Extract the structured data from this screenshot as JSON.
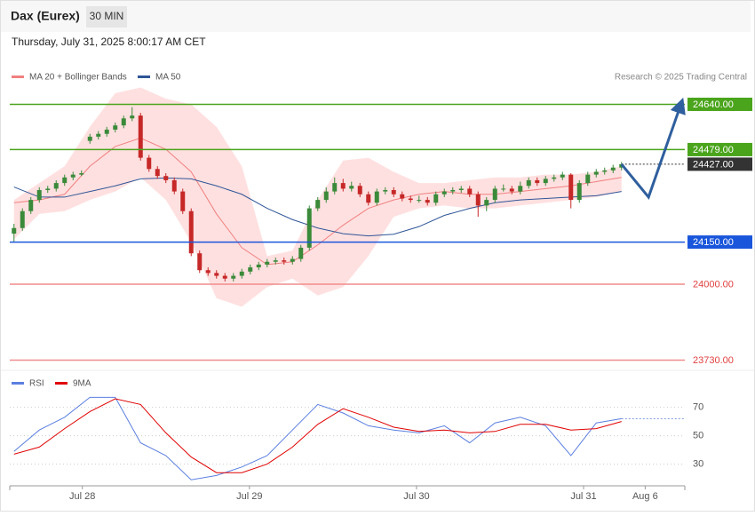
{
  "chart_data": {
    "type": "candlestick",
    "title": "Dax (Eurex)",
    "timeframe": "30 MIN",
    "subtitle": "Thursday, July 31, 2025 8:00:17 AM CET",
    "source": "Research © 2025 Trading Central",
    "up_color": "#3a8a3a",
    "down_color": "#c62828",
    "xlim": [
      -0.5,
      79.5
    ],
    "xticks": [
      {
        "value": 8.1,
        "label": "Jul 28"
      },
      {
        "value": 27.9,
        "label": "Jul 29"
      },
      {
        "value": 47.7,
        "label": "Jul 30"
      },
      {
        "value": 67.5,
        "label": "Jul 31"
      },
      {
        "value": 74.8,
        "label": "Aug 6"
      }
    ],
    "ylim": [
      23700,
      24790
    ],
    "candles": [
      [
        24180,
        24215,
        24150,
        24200
      ],
      [
        24200,
        24270,
        24190,
        24260
      ],
      [
        24260,
        24310,
        24250,
        24300
      ],
      [
        24300,
        24345,
        24290,
        24335
      ],
      [
        24335,
        24350,
        24325,
        24340
      ],
      [
        24340,
        24370,
        24330,
        24360
      ],
      [
        24360,
        24390,
        24350,
        24380
      ],
      [
        24380,
        24400,
        24370,
        24390
      ],
      [
        24390,
        24405,
        24385,
        24395
      ],
      [
        24510,
        24535,
        24500,
        24525
      ],
      [
        24525,
        24545,
        24515,
        24535
      ],
      [
        24535,
        24560,
        24525,
        24550
      ],
      [
        24550,
        24575,
        24540,
        24565
      ],
      [
        24565,
        24600,
        24555,
        24590
      ],
      [
        24590,
        24630,
        24580,
        24600
      ],
      [
        24600,
        24610,
        24440,
        24450
      ],
      [
        24450,
        24460,
        24400,
        24410
      ],
      [
        24410,
        24420,
        24375,
        24385
      ],
      [
        24385,
        24395,
        24360,
        24370
      ],
      [
        24370,
        24380,
        24320,
        24330
      ],
      [
        24330,
        24340,
        24250,
        24260
      ],
      [
        24260,
        24270,
        24100,
        24110
      ],
      [
        24110,
        24120,
        24040,
        24050
      ],
      [
        24050,
        24060,
        24030,
        24040
      ],
      [
        24040,
        24050,
        24020,
        24030
      ],
      [
        24030,
        24040,
        24010,
        24020
      ],
      [
        24020,
        24040,
        24010,
        24030
      ],
      [
        24030,
        24055,
        24020,
        24045
      ],
      [
        24045,
        24070,
        24035,
        24060
      ],
      [
        24060,
        24080,
        24050,
        24070
      ],
      [
        24070,
        24090,
        24060,
        24080
      ],
      [
        24080,
        24095,
        24070,
        24085
      ],
      [
        24085,
        24095,
        24070,
        24080
      ],
      [
        24080,
        24100,
        24070,
        24090
      ],
      [
        24090,
        24140,
        24080,
        24130
      ],
      [
        24130,
        24280,
        24120,
        24270
      ],
      [
        24270,
        24310,
        24260,
        24300
      ],
      [
        24300,
        24345,
        24290,
        24330
      ],
      [
        24330,
        24380,
        24320,
        24360
      ],
      [
        24360,
        24375,
        24330,
        24340
      ],
      [
        24340,
        24365,
        24330,
        24350
      ],
      [
        24350,
        24360,
        24310,
        24320
      ],
      [
        24320,
        24330,
        24280,
        24290
      ],
      [
        24290,
        24340,
        24280,
        24330
      ],
      [
        24330,
        24345,
        24320,
        24335
      ],
      [
        24335,
        24345,
        24310,
        24320
      ],
      [
        24320,
        24330,
        24295,
        24305
      ],
      [
        24305,
        24315,
        24290,
        24300
      ],
      [
        24300,
        24315,
        24290,
        24300
      ],
      [
        24300,
        24310,
        24280,
        24290
      ],
      [
        24290,
        24330,
        24280,
        24320
      ],
      [
        24320,
        24340,
        24310,
        24330
      ],
      [
        24330,
        24345,
        24320,
        24335
      ],
      [
        24335,
        24350,
        24325,
        24340
      ],
      [
        24340,
        24350,
        24310,
        24320
      ],
      [
        24320,
        24330,
        24240,
        24280
      ],
      [
        24280,
        24310,
        24260,
        24300
      ],
      [
        24300,
        24350,
        24290,
        24340
      ],
      [
        24340,
        24355,
        24330,
        24340
      ],
      [
        24340,
        24350,
        24320,
        24330
      ],
      [
        24330,
        24365,
        24320,
        24350
      ],
      [
        24350,
        24380,
        24340,
        24370
      ],
      [
        24370,
        24380,
        24350,
        24360
      ],
      [
        24360,
        24385,
        24350,
        24375
      ],
      [
        24375,
        24390,
        24365,
        24380
      ],
      [
        24380,
        24400,
        24370,
        24390
      ],
      [
        24390,
        24395,
        24270,
        24300
      ],
      [
        24300,
        24370,
        24290,
        24360
      ],
      [
        24360,
        24400,
        24350,
        24390
      ],
      [
        24390,
        24410,
        24380,
        24400
      ],
      [
        24400,
        24415,
        24390,
        24405
      ],
      [
        24405,
        24425,
        24395,
        24415
      ],
      [
        24415,
        24435,
        24405,
        24427
      ]
    ],
    "indicator_x": [
      0,
      3,
      6,
      9,
      12,
      15,
      18,
      21,
      24,
      27,
      30,
      33,
      36,
      39,
      42,
      45,
      48,
      51,
      54,
      57,
      60,
      63,
      66,
      69,
      72
    ],
    "bands": {
      "name": "MA 20 + Bollinger Bands",
      "color": "#f08080",
      "fill": "#ffe0e0",
      "ma": [
        24290,
        24300,
        24320,
        24420,
        24490,
        24520,
        24480,
        24400,
        24250,
        24130,
        24070,
        24080,
        24140,
        24210,
        24270,
        24300,
        24320,
        24330,
        24320,
        24320,
        24330,
        24340,
        24350,
        24365,
        24380
      ],
      "upper": [
        24300,
        24360,
        24420,
        24560,
        24680,
        24700,
        24660,
        24640,
        24560,
        24420,
        24100,
        24120,
        24300,
        24440,
        24450,
        24400,
        24360,
        24360,
        24370,
        24380,
        24380,
        24390,
        24390,
        24400,
        24420
      ],
      "lower": [
        24160,
        24250,
        24260,
        24300,
        24330,
        24380,
        24300,
        24150,
        23950,
        23920,
        23990,
        24020,
        23960,
        23990,
        24100,
        24240,
        24270,
        24280,
        24270,
        24270,
        24280,
        24290,
        24300,
        24310,
        24330
      ]
    },
    "ma50": {
      "name": "MA 50",
      "color": "#2f5597",
      "values": [
        24346,
        24310,
        24310,
        24330,
        24350,
        24375,
        24378,
        24375,
        24350,
        24320,
        24270,
        24230,
        24200,
        24180,
        24172,
        24178,
        24205,
        24245,
        24270,
        24290,
        24300,
        24305,
        24310,
        24315,
        24330
      ]
    },
    "levels": [
      {
        "value": 24640,
        "label": "24640.00",
        "color": "#4aa41c",
        "boxed": true,
        "full": true
      },
      {
        "value": 24479,
        "label": "24479.00",
        "color": "#4aa41c",
        "boxed": true,
        "full": true
      },
      {
        "value": 24427,
        "label": "24427.00",
        "color": "#333333",
        "boxed": true,
        "full": false
      },
      {
        "value": 24150,
        "label": "24150.00",
        "color": "#1a56db",
        "boxed": true,
        "full": true
      },
      {
        "value": 24000,
        "label": "24000.00",
        "color": "#f08c8c",
        "boxed": false,
        "full": true
      },
      {
        "value": 23730,
        "label": "23730.00",
        "color": "#f08c8c",
        "boxed": false,
        "full": true
      }
    ],
    "projection": {
      "x": [
        72,
        75.2,
        79
      ],
      "values": [
        24427,
        24310,
        24637
      ],
      "color": "#2f5f9e"
    },
    "rsi": {
      "ylim": [
        16,
        96
      ],
      "yticks": [
        70,
        50,
        30
      ],
      "series": [
        {
          "name": "RSI",
          "color": "#5b7fe0",
          "values": [
            39,
            54,
            63,
            77,
            77,
            45,
            36,
            19,
            22,
            28,
            36,
            54,
            72,
            66,
            57,
            54,
            52,
            57,
            45,
            59,
            63,
            57,
            36,
            59,
            62
          ]
        },
        {
          "name": "9MA",
          "color": "#e00000",
          "values": [
            37,
            42,
            55,
            67,
            76,
            72,
            52,
            35,
            24,
            24,
            30,
            42,
            58,
            69,
            63,
            56,
            53,
            54,
            52,
            53,
            58,
            58,
            54,
            55,
            60
          ]
        }
      ]
    }
  }
}
